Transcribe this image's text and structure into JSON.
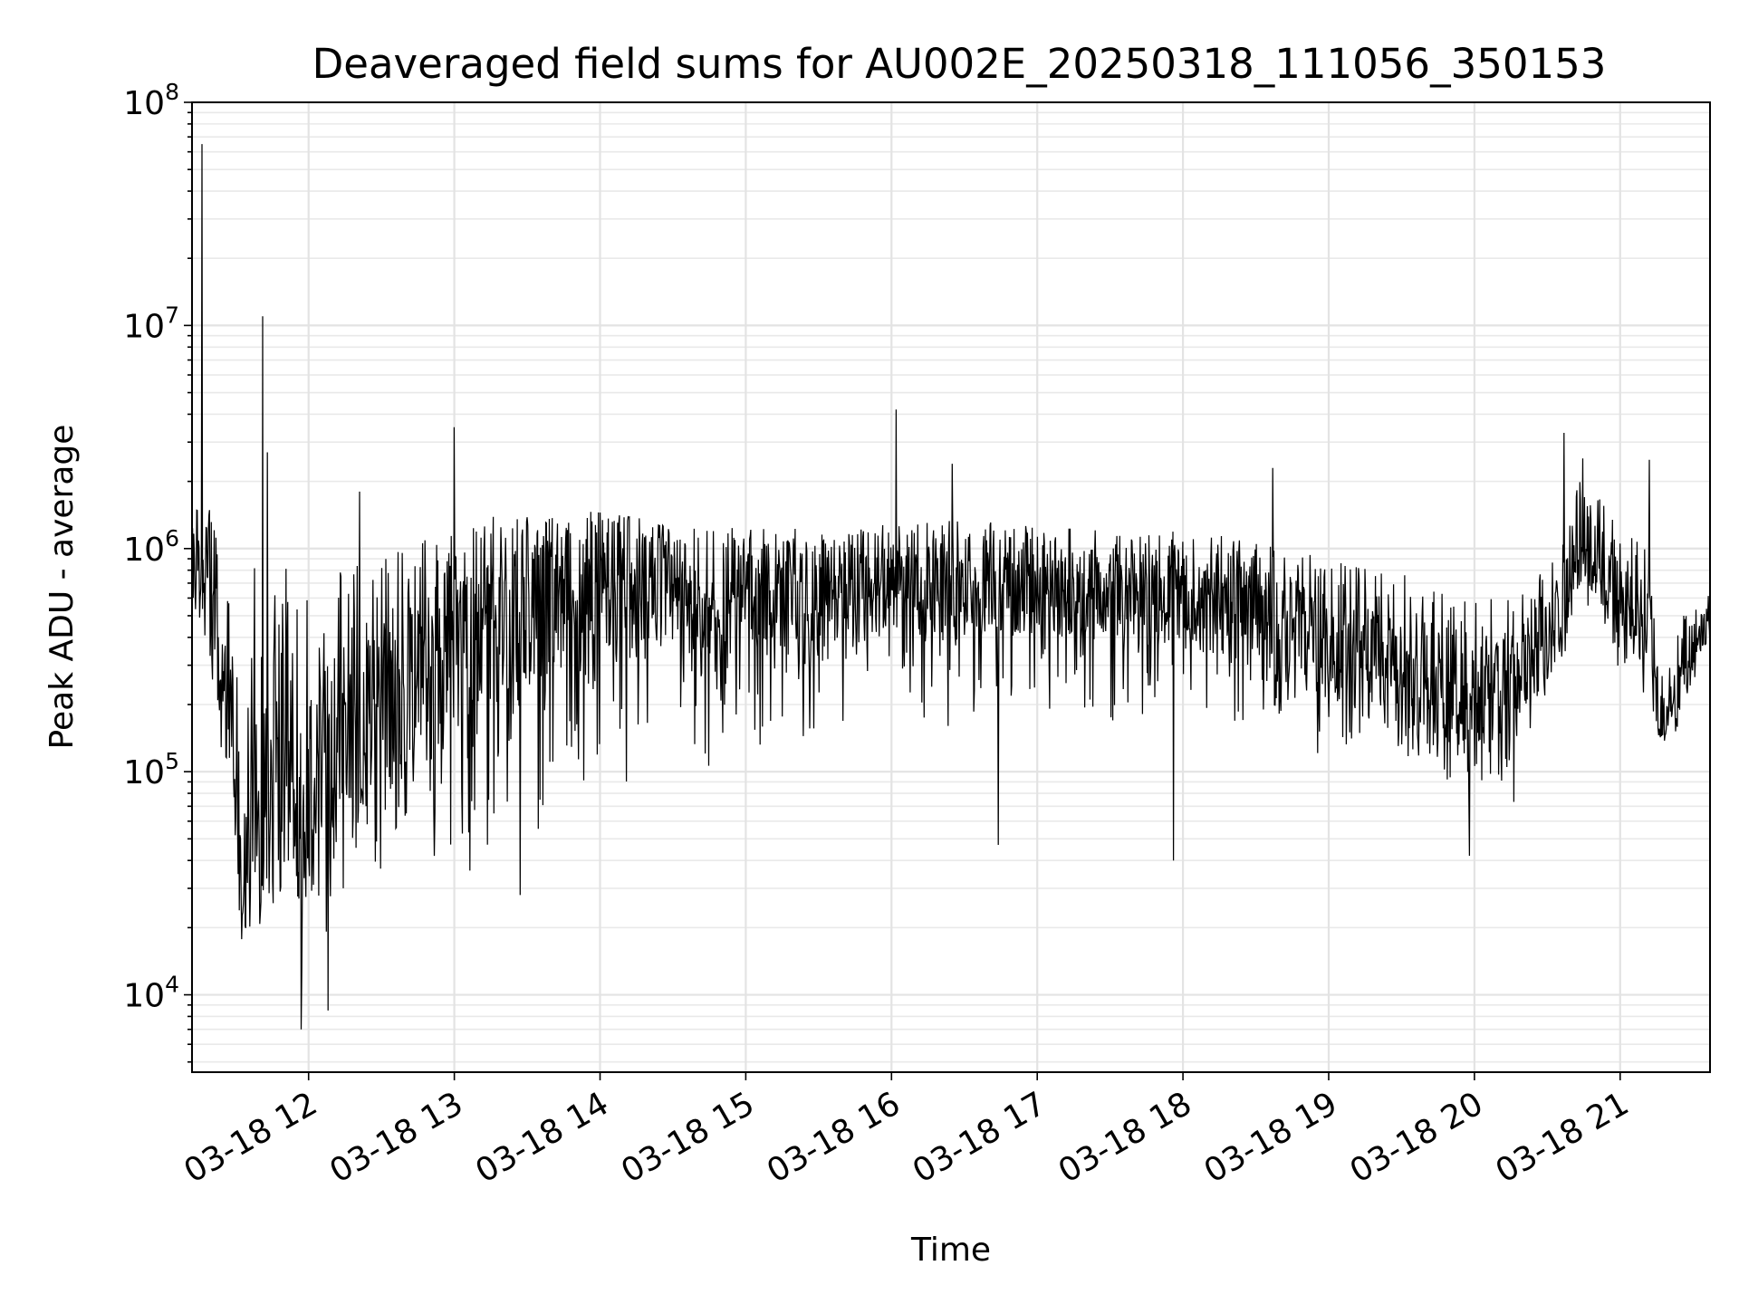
{
  "chart_data": {
    "type": "line",
    "title": "Deaveraged field sums for AU002E_20250318_111056_350153",
    "xlabel": "Time",
    "ylabel": "Peak ADU - average",
    "yscale": "log",
    "ylim": [
      4500,
      100000000
    ],
    "xlim": [
      "2025-03-18 11:12",
      "2025-03-18 21:37"
    ],
    "grid": true,
    "x_ticks": [
      "03-18 12",
      "03-18 13",
      "03-18 14",
      "03-18 15",
      "03-18 16",
      "03-18 17",
      "03-18 18",
      "03-18 19",
      "03-18 20",
      "03-18 21"
    ],
    "y_ticks": [
      {
        "value": 10000,
        "base": "10",
        "exp": "4"
      },
      {
        "value": 100000,
        "base": "10",
        "exp": "5"
      },
      {
        "value": 1000000,
        "base": "10",
        "exp": "6"
      },
      {
        "value": 10000000,
        "base": "10",
        "exp": "7"
      },
      {
        "value": 100000000,
        "base": "10",
        "exp": "8"
      }
    ],
    "series": [
      {
        "color": "#000000",
        "envelope": [
          {
            "t": "2025-03-18 11:12",
            "median": 800000,
            "low": 430000,
            "high": 1500000
          },
          {
            "t": "2025-03-18 11:20",
            "median": 500000,
            "low": 120000,
            "high": 1600000
          },
          {
            "t": "2025-03-18 11:27",
            "median": 200000,
            "low": 38000,
            "high": 600000
          },
          {
            "t": "2025-03-18 11:33",
            "median": 40000,
            "low": 16000,
            "high": 900000
          },
          {
            "t": "2025-03-18 11:45",
            "median": 70000,
            "low": 17000,
            "high": 850000
          },
          {
            "t": "2025-03-18 11:55",
            "median": 70000,
            "low": 11000,
            "high": 800000
          },
          {
            "t": "2025-03-18 12:10",
            "median": 100000,
            "low": 13000,
            "high": 850000
          },
          {
            "t": "2025-03-18 12:25",
            "median": 150000,
            "low": 18000,
            "high": 850000
          },
          {
            "t": "2025-03-18 12:40",
            "median": 200000,
            "low": 22000,
            "high": 1000000
          },
          {
            "t": "2025-03-18 12:55",
            "median": 350000,
            "low": 28000,
            "high": 1200000
          },
          {
            "t": "2025-03-18 13:15",
            "median": 500000,
            "low": 40000,
            "high": 1400000
          },
          {
            "t": "2025-03-18 13:40",
            "median": 650000,
            "low": 50000,
            "high": 1500000
          },
          {
            "t": "2025-03-18 14:00",
            "median": 700000,
            "low": 70000,
            "high": 1450000
          },
          {
            "t": "2025-03-18 14:30",
            "median": 650000,
            "low": 80000,
            "high": 1300000
          },
          {
            "t": "2025-03-18 15:00",
            "median": 600000,
            "low": 100000,
            "high": 1250000
          },
          {
            "t": "2025-03-18 15:30",
            "median": 620000,
            "low": 120000,
            "high": 1250000
          },
          {
            "t": "2025-03-18 16:00",
            "median": 700000,
            "low": 150000,
            "high": 1300000
          },
          {
            "t": "2025-03-18 16:30",
            "median": 700000,
            "low": 150000,
            "high": 1350000
          },
          {
            "t": "2025-03-18 17:00",
            "median": 700000,
            "low": 150000,
            "high": 1300000
          },
          {
            "t": "2025-03-18 17:30",
            "median": 650000,
            "low": 150000,
            "high": 1200000
          },
          {
            "t": "2025-03-18 18:00",
            "median": 600000,
            "low": 150000,
            "high": 1200000
          },
          {
            "t": "2025-03-18 18:30",
            "median": 500000,
            "low": 130000,
            "high": 1100000
          },
          {
            "t": "2025-03-18 19:00",
            "median": 350000,
            "low": 100000,
            "high": 900000
          },
          {
            "t": "2025-03-18 19:30",
            "median": 280000,
            "low": 90000,
            "high": 800000
          },
          {
            "t": "2025-03-18 19:50",
            "median": 200000,
            "low": 70000,
            "high": 600000
          },
          {
            "t": "2025-03-18 20:15",
            "median": 220000,
            "low": 60000,
            "high": 600000
          },
          {
            "t": "2025-03-18 20:35",
            "median": 500000,
            "low": 150000,
            "high": 1000000
          },
          {
            "t": "2025-03-18 20:45",
            "median": 1200000,
            "low": 400000,
            "high": 2800000
          },
          {
            "t": "2025-03-18 21:00",
            "median": 600000,
            "low": 250000,
            "high": 1200000
          },
          {
            "t": "2025-03-18 21:12",
            "median": 500000,
            "low": 200000,
            "high": 1000000
          },
          {
            "t": "2025-03-18 21:16",
            "median": 150000,
            "low": 110000,
            "high": 250000
          },
          {
            "t": "2025-03-18 21:25",
            "median": 250000,
            "low": 150000,
            "high": 500000
          },
          {
            "t": "2025-03-18 21:37",
            "median": 500000,
            "low": 300000,
            "high": 650000
          }
        ],
        "peaks": [
          {
            "t": "2025-03-18 11:16",
            "value": 65000000
          },
          {
            "t": "2025-03-18 11:41",
            "value": 11000000
          },
          {
            "t": "2025-03-18 11:43",
            "value": 2700000
          },
          {
            "t": "2025-03-18 12:21",
            "value": 1800000
          },
          {
            "t": "2025-03-18 13:00",
            "value": 3500000
          },
          {
            "t": "2025-03-18 16:02",
            "value": 4200000
          },
          {
            "t": "2025-03-18 16:25",
            "value": 2400000
          },
          {
            "t": "2025-03-18 18:37",
            "value": 2300000
          },
          {
            "t": "2025-03-18 20:37",
            "value": 3300000
          },
          {
            "t": "2025-03-18 21:12",
            "value": 2500000
          }
        ],
        "troughs": [
          {
            "t": "2025-03-18 11:57",
            "value": 7000
          },
          {
            "t": "2025-03-18 12:08",
            "value": 8500
          },
          {
            "t": "2025-03-18 13:27",
            "value": 28000
          },
          {
            "t": "2025-03-18 16:44",
            "value": 47000
          },
          {
            "t": "2025-03-18 17:56",
            "value": 40000
          },
          {
            "t": "2025-03-18 19:58",
            "value": 42000
          }
        ]
      }
    ]
  }
}
